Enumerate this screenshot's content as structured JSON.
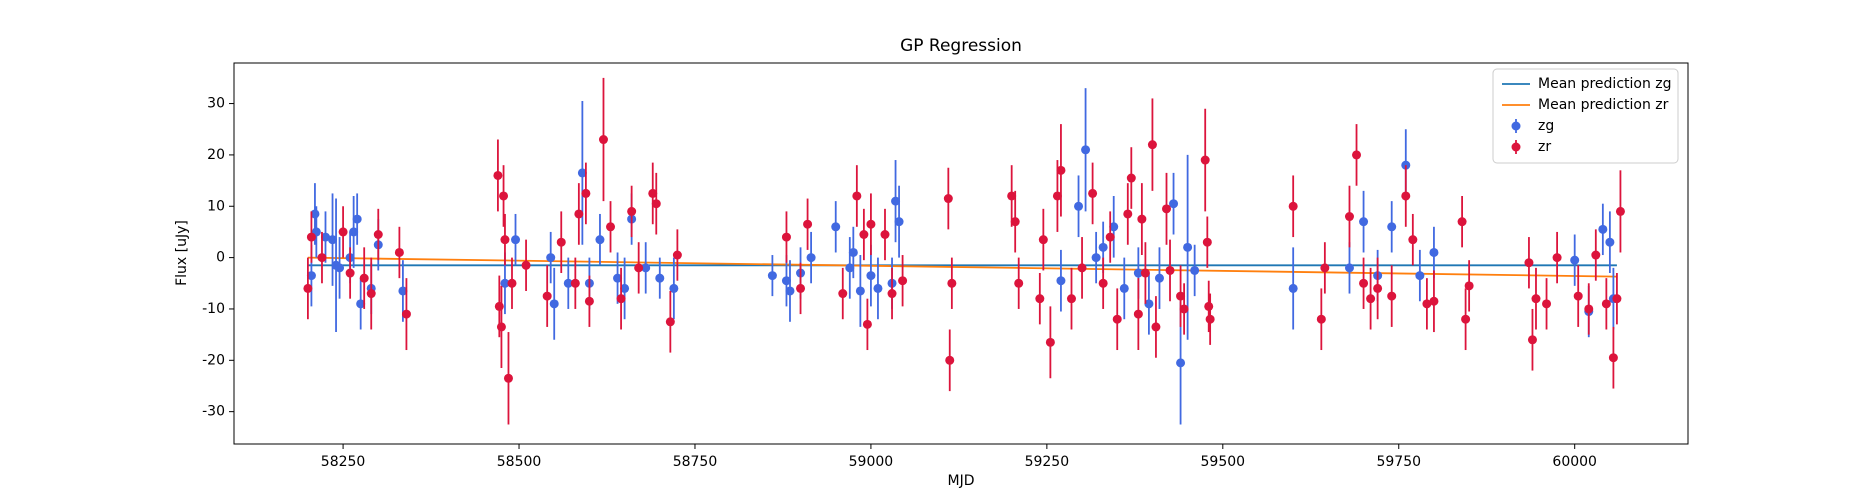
{
  "chart_data": {
    "type": "scatter",
    "title": "GP Regression",
    "xlabel": "MJD",
    "ylabel": "Flux [uJy]",
    "xlim": [
      58095,
      60161
    ],
    "ylim": [
      -36.3,
      37.9
    ],
    "xticks": [
      58250,
      58500,
      58750,
      59000,
      59250,
      59500,
      59750,
      60000
    ],
    "yticks": [
      -30,
      -20,
      -10,
      0,
      10,
      20,
      30
    ],
    "legend": "upper right",
    "lines": [
      {
        "name": "Mean prediction zg",
        "color": "#1f77b4",
        "x": [
          58200,
          60060
        ],
        "values": [
          -1.5,
          -1.5
        ]
      },
      {
        "name": "Mean prediction zr",
        "color": "#ff7f0e",
        "x": [
          58200,
          60060
        ],
        "values": [
          0,
          -3.7
        ]
      }
    ],
    "series": [
      {
        "name": "zg",
        "color": "#4169e1",
        "x": [
          58205,
          58210,
          58212,
          58225,
          58235,
          58240,
          58245,
          58260,
          58265,
          58270,
          58275,
          58290,
          58300,
          58335,
          58480,
          58495,
          58545,
          58550,
          58570,
          58590,
          58600,
          58615,
          58640,
          58650,
          58660,
          58680,
          58700,
          58720,
          58860,
          58880,
          58885,
          58900,
          58915,
          58950,
          58970,
          58975,
          58985,
          59000,
          59010,
          59030,
          59035,
          59040,
          59270,
          59295,
          59305,
          59320,
          59330,
          59345,
          59360,
          59380,
          59395,
          59410,
          59430,
          59440,
          59450,
          59460,
          59600,
          59680,
          59700,
          59720,
          59740,
          59760,
          59780,
          59800,
          60000,
          60020,
          60040,
          60050,
          60055
        ],
        "values": [
          -3.5,
          8.5,
          5,
          4,
          3.5,
          -1.5,
          -2,
          0,
          5,
          7.5,
          -9,
          -6,
          2.5,
          -6.5,
          -5,
          3.5,
          0,
          -9,
          -5,
          16.5,
          -5,
          3.5,
          -4,
          -6,
          7.5,
          -2,
          -4,
          -6,
          -3.5,
          -4.5,
          -6.5,
          -3,
          0,
          6,
          -2,
          1,
          -6.5,
          -3.5,
          -6,
          -5,
          11,
          7,
          -4.5,
          10,
          21,
          0,
          2,
          6,
          -6,
          -3,
          -9,
          -4,
          10.5,
          -20.5,
          2,
          -2.5,
          -6,
          -2,
          7,
          -3.5,
          6,
          18,
          -3.5,
          1,
          -0.5,
          -10.5,
          5.5,
          3,
          -8
        ],
        "errors": [
          6,
          6,
          5,
          5,
          9,
          13,
          6,
          5,
          7,
          5,
          5,
          5,
          5,
          6,
          6,
          5,
          5,
          7,
          5,
          14,
          5,
          5,
          5,
          6,
          5,
          5,
          4,
          6,
          4,
          5,
          6,
          5,
          5,
          5,
          6,
          5,
          7,
          6,
          6,
          5,
          8,
          7,
          6,
          6,
          12,
          5,
          5,
          6,
          6,
          5,
          6,
          6,
          6,
          12,
          18,
          5,
          8,
          5,
          6,
          5,
          5,
          7,
          5,
          5,
          5,
          5,
          5,
          6,
          6
        ]
      },
      {
        "name": "zr",
        "color": "#dc143c",
        "x": [
          58200,
          58205,
          58220,
          58250,
          58260,
          58280,
          58290,
          58300,
          58330,
          58340,
          58470,
          58472,
          58475,
          58478,
          58480,
          58485,
          58490,
          58510,
          58540,
          58560,
          58580,
          58585,
          58595,
          58600,
          58620,
          58630,
          58645,
          58660,
          58670,
          58690,
          58695,
          58715,
          58725,
          58880,
          58900,
          58910,
          58960,
          58980,
          58990,
          58995,
          59000,
          59020,
          59030,
          59045,
          59110,
          59112,
          59115,
          59200,
          59205,
          59210,
          59240,
          59245,
          59255,
          59265,
          59270,
          59285,
          59300,
          59315,
          59330,
          59340,
          59350,
          59365,
          59370,
          59380,
          59385,
          59390,
          59400,
          59405,
          59420,
          59425,
          59440,
          59445,
          59475,
          59478,
          59480,
          59482,
          59600,
          59640,
          59645,
          59680,
          59690,
          59700,
          59710,
          59720,
          59740,
          59760,
          59770,
          59790,
          59800,
          59840,
          59845,
          59850,
          59935,
          59940,
          59945,
          59960,
          59975,
          60005,
          60020,
          60030,
          60045,
          60055,
          60060,
          60065
        ],
        "values": [
          -6,
          4,
          0,
          5,
          -3,
          -4,
          -7,
          4.5,
          1,
          -11,
          16,
          -9.5,
          -13.5,
          12,
          3.5,
          -23.5,
          -5,
          -1.5,
          -7.5,
          3,
          -5,
          8.5,
          12.5,
          -8.5,
          23,
          6,
          -8,
          9,
          -2,
          12.5,
          10.5,
          -12.5,
          0.5,
          4,
          -6,
          6.5,
          -7,
          12,
          4.5,
          -13,
          6.5,
          4.5,
          -7,
          -4.5,
          11.5,
          -20,
          -5,
          12,
          7,
          -5,
          -8,
          3.5,
          -16.5,
          12,
          17,
          -8,
          -2,
          12.5,
          -5,
          4,
          -12,
          8.5,
          15.5,
          -11,
          7.5,
          -3,
          22,
          -13.5,
          9.5,
          -2.5,
          -7.5,
          -10,
          19,
          3,
          -9.5,
          -12,
          10,
          -12,
          -2,
          8,
          20,
          -5,
          -8,
          -6,
          -7.5,
          12,
          3.5,
          -9,
          -8.5,
          7,
          -12,
          -5.5,
          -1,
          -16,
          -8,
          -9,
          0,
          -7.5,
          -10,
          0.5,
          -9,
          -19.5,
          -8,
          9
        ],
        "errors": [
          6,
          5,
          5,
          5,
          5,
          6,
          7,
          5,
          5,
          7,
          7,
          6,
          8,
          6,
          5,
          9,
          5,
          5,
          6,
          6,
          5,
          6,
          6,
          5,
          12,
          5,
          6,
          5,
          5,
          6,
          6,
          6,
          5,
          5,
          5,
          5,
          5,
          6,
          5,
          5,
          6,
          5,
          5,
          5,
          6,
          6,
          5,
          6,
          6,
          5,
          5,
          6,
          7,
          7,
          9,
          6,
          6,
          6,
          5,
          5,
          6,
          6,
          6,
          7,
          7,
          6,
          9,
          6,
          7,
          6,
          6,
          5,
          10,
          5,
          5,
          5,
          6,
          6,
          5,
          6,
          6,
          5,
          6,
          6,
          6,
          6,
          5,
          5,
          6,
          5,
          6,
          5,
          5,
          6,
          6,
          5,
          5,
          6,
          5,
          5,
          5,
          6,
          5,
          8
        ]
      }
    ]
  }
}
